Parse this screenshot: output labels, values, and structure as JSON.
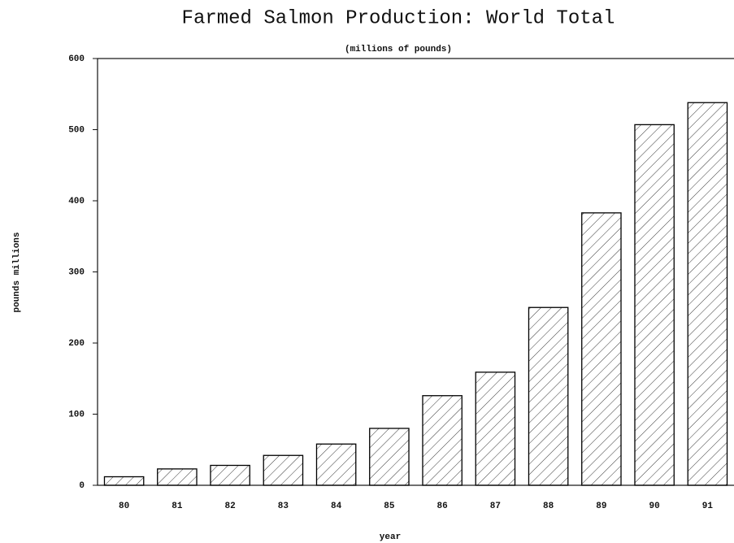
{
  "chart_data": {
    "type": "bar",
    "title": "Farmed Salmon Production:  World Total",
    "subtitle": "(millions of pounds)",
    "y_label": "pounds millions",
    "x_label": "year",
    "categories": [
      "80",
      "81",
      "82",
      "83",
      "84",
      "85",
      "86",
      "87",
      "88",
      "89",
      "90",
      "91"
    ],
    "values": [
      12,
      23,
      28,
      42,
      58,
      80,
      126,
      159,
      250,
      383,
      507,
      538
    ],
    "color": "#000000",
    "ylim": [
      0,
      600
    ],
    "yticks": [
      0,
      100,
      200,
      300,
      400,
      500,
      600
    ],
    "grid": false
  }
}
